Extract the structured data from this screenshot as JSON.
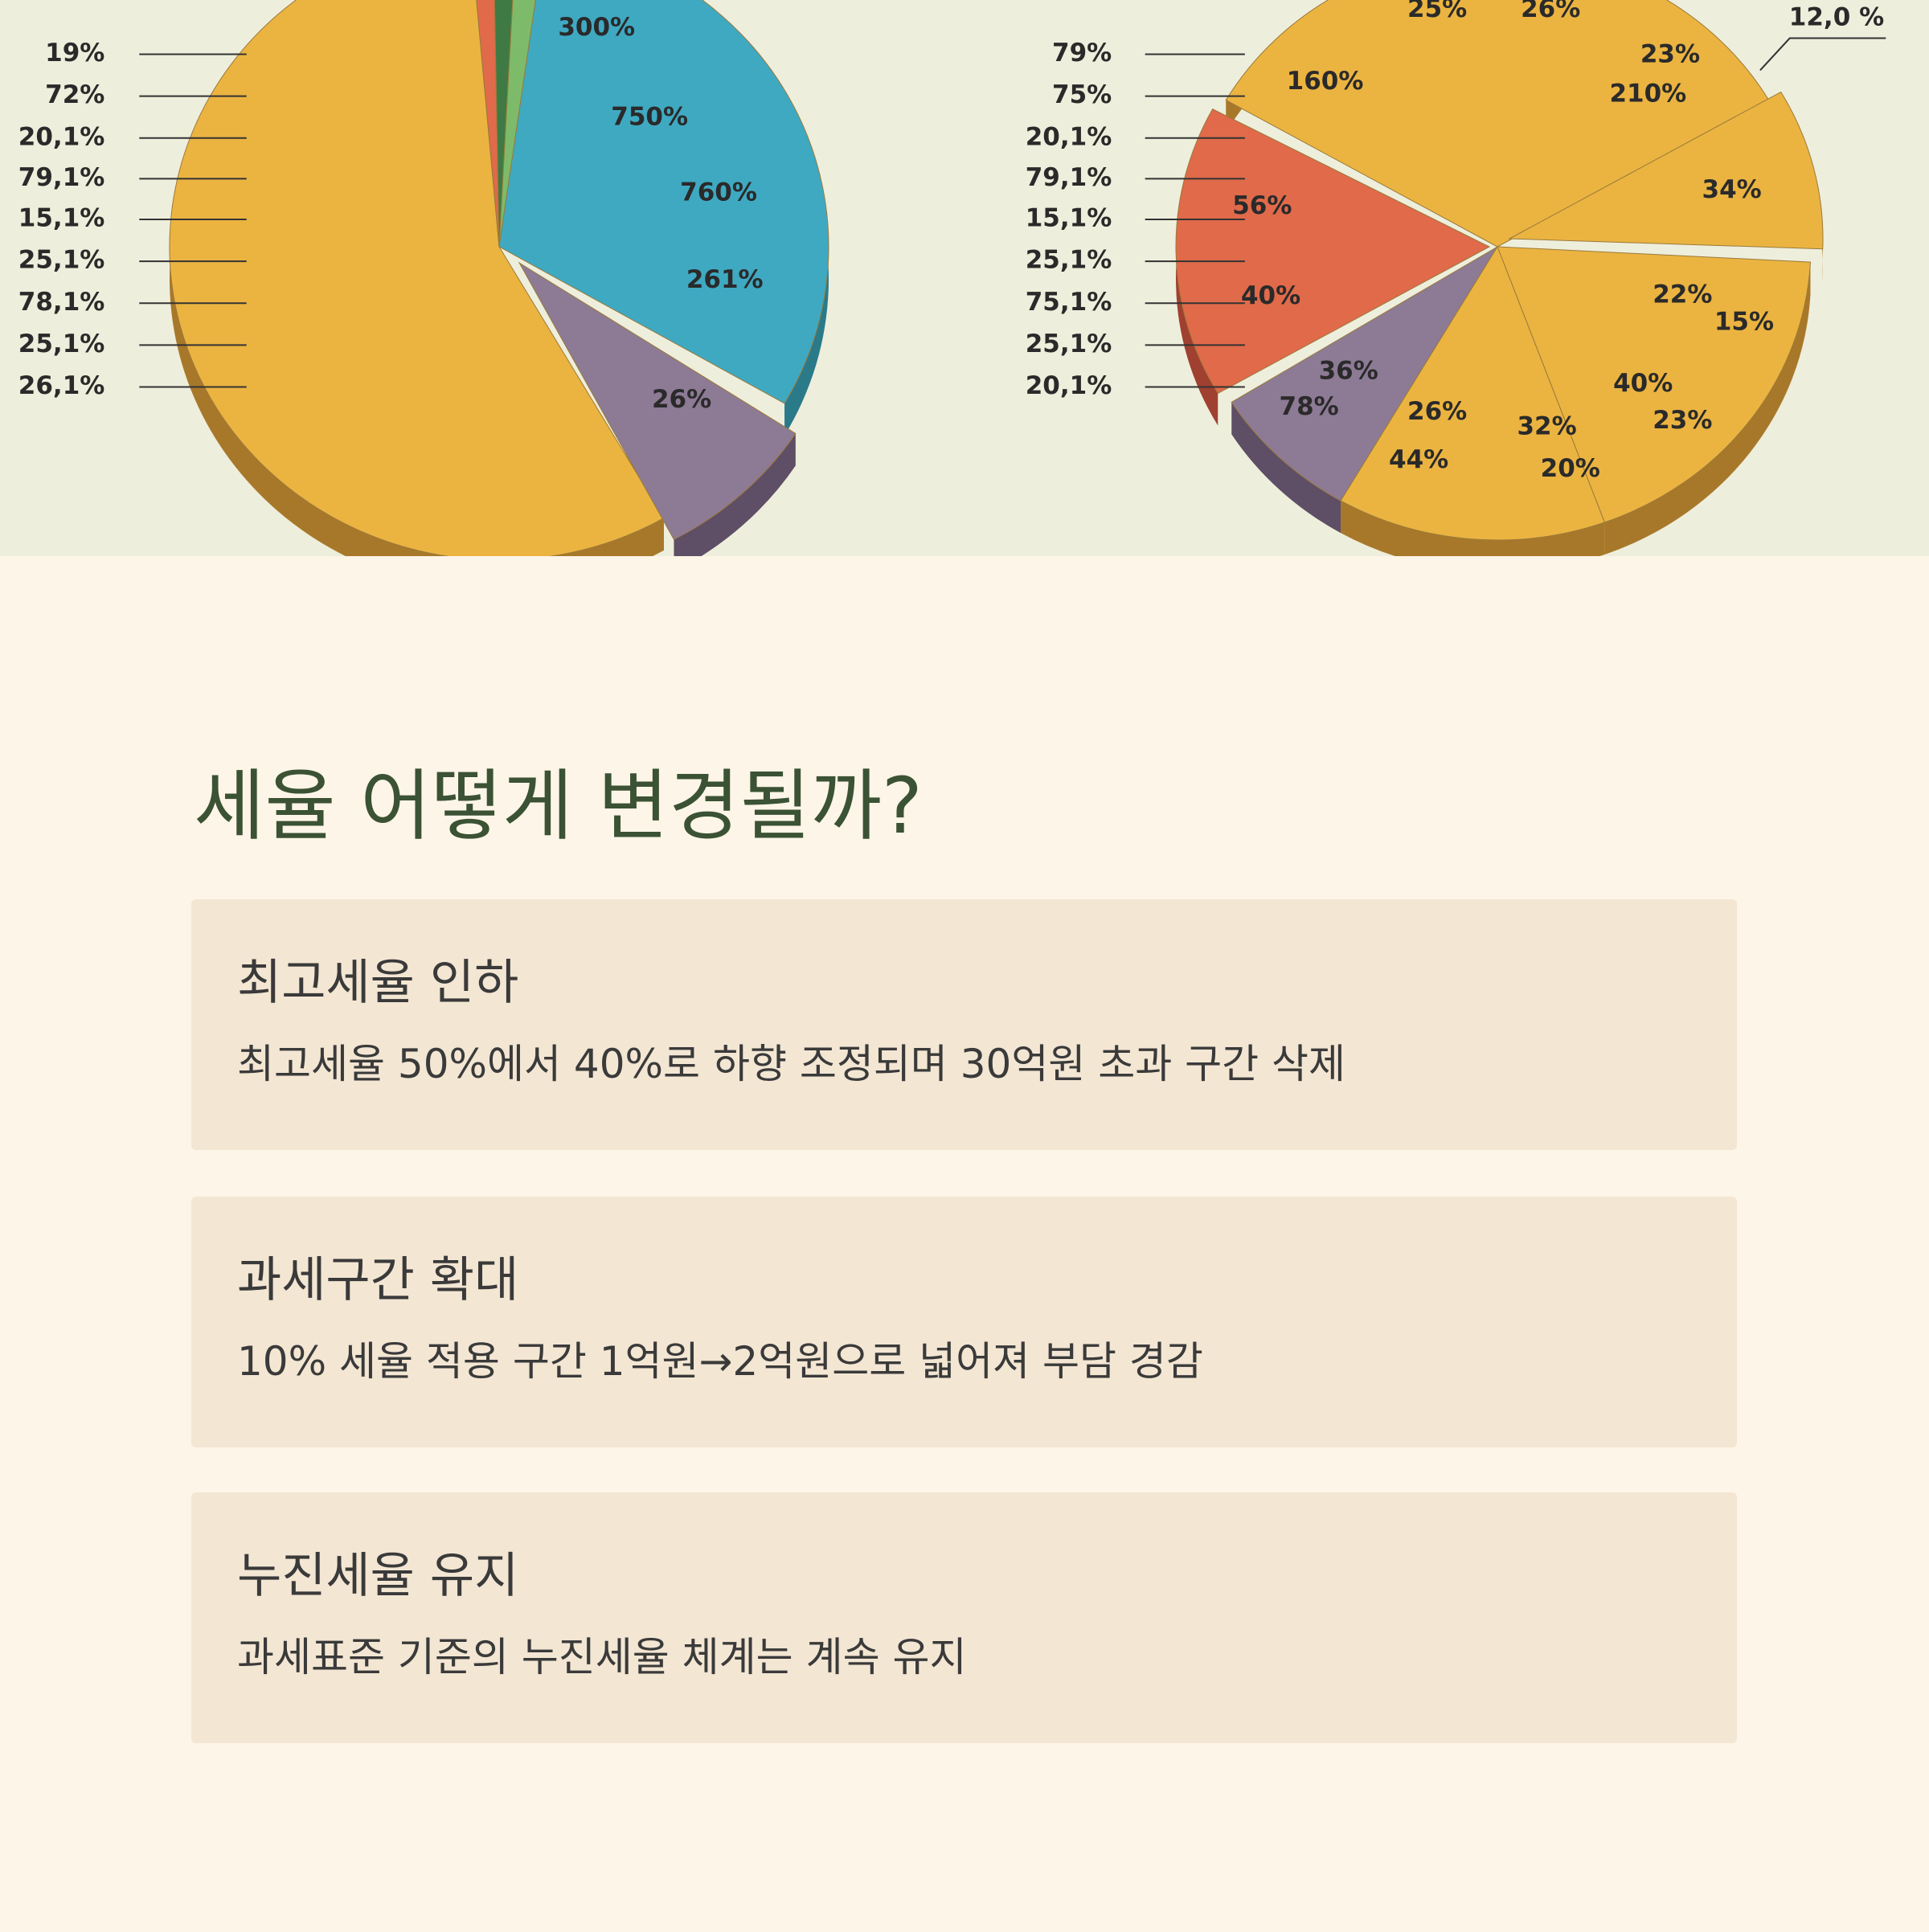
{
  "image": {
    "left_chart": {
      "axis_labels": [
        "19%",
        "72%",
        "20,1%",
        "79,1%",
        "15,1%",
        "25,1%",
        "78,1%",
        "25,1%",
        "26,1%"
      ],
      "slice_labels": [
        "300%",
        "750%",
        "760%",
        "261%",
        "26%"
      ]
    },
    "right_chart": {
      "axis_labels": [
        "79%",
        "75%",
        "20,1%",
        "79,1%",
        "15,1%",
        "25,1%",
        "75,1%",
        "25,1%",
        "20,1%"
      ],
      "slice_labels": [
        "25%",
        "26%",
        "12,0 %",
        "160%",
        "23%",
        "210%",
        "34%",
        "56%",
        "40%",
        "22%",
        "15%",
        "36%",
        "78%",
        "40%",
        "23%",
        "26%",
        "32%",
        "44%",
        "20%"
      ]
    }
  },
  "heading": "세율 어떻게 변경될까?",
  "cards": [
    {
      "title": "최고세율 인하",
      "text": "최고세율 50%에서 40%로 하향 조정되며 30억원 초과 구간 삭제"
    },
    {
      "title": "과세구간 확대",
      "text": "10% 세율 적용 구간 1억원→2억원으로 넓어져 부담 경감"
    },
    {
      "title": "누진세율 유지",
      "text": "과세표준 기준의 누진세율 체계는 계속 유지"
    }
  ]
}
